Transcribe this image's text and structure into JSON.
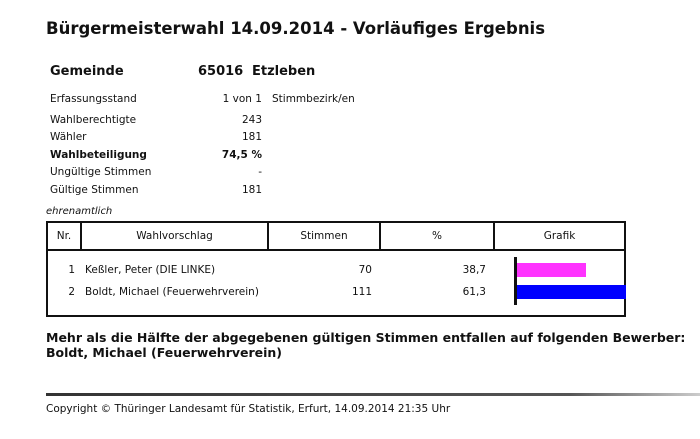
{
  "title": "Bürgermeisterwahl 14.09.2014 - Vorläufiges Ergebnis",
  "gemeinde": {
    "label": "Gemeinde",
    "code": "65016",
    "name": "Etzleben"
  },
  "stats": [
    {
      "label": "Erfassungsstand",
      "value": "1 von 1",
      "suffix": "Stimmbezirk/en",
      "bold": false
    },
    {
      "label": "Wahlberechtigte",
      "value": "243",
      "bold": false
    },
    {
      "label": "Wähler",
      "value": "181",
      "bold": false
    },
    {
      "label": "Wahlbeteiligung",
      "value": "74,5 %",
      "bold": true
    },
    {
      "label": "Ungültige Stimmen",
      "value": "-",
      "bold": false
    },
    {
      "label": "Gültige Stimmen",
      "value": "181",
      "bold": false
    }
  ],
  "note_italic": "ehrenamtlich",
  "table": {
    "headers": [
      "Nr.",
      "Wahlvorschlag",
      "Stimmen",
      "%",
      "Grafik"
    ],
    "rows": [
      {
        "nr": "1",
        "name": "Keßler, Peter (DIE LINKE)",
        "stimmen": "70",
        "pct": "38,7",
        "pct_value": 38.7,
        "color": "#ff33ff"
      },
      {
        "nr": "2",
        "name": "Boldt, Michael (Feuerwehrverein)",
        "stimmen": "111",
        "pct": "61,3",
        "pct_value": 61.3,
        "color": "#0000ff"
      }
    ]
  },
  "result_note": {
    "line1": "Mehr als die Hälfte der abgegebenen gültigen Stimmen entfallen auf folgenden Bewerber:",
    "line2": "Boldt, Michael (Feuerwehrverein)"
  },
  "footer": "Copyright © Thüringer Landesamt für Statistik, Erfurt, 14.09.2014 21:35 Uhr"
}
